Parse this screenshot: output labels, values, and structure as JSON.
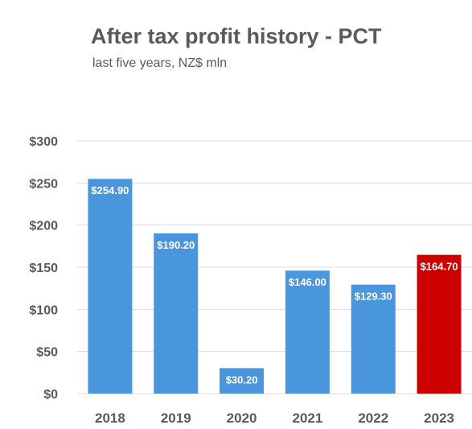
{
  "chart_data": {
    "type": "bar",
    "title": "After tax profit history - PCT",
    "subtitle": "last five years, NZ$ mln",
    "categories": [
      "2018",
      "2019",
      "2020",
      "2021",
      "2022",
      "2023"
    ],
    "values": [
      254.9,
      190.2,
      30.2,
      146.0,
      129.3,
      164.7
    ],
    "data_labels": [
      "$254.90",
      "$190.20",
      "$30.20",
      "$146.00",
      "$129.30",
      "$164.70"
    ],
    "ylim": [
      0,
      300
    ],
    "yticks": [
      0,
      50,
      100,
      150,
      200,
      250,
      300
    ],
    "ytick_labels": [
      "$0",
      "$50",
      "$100",
      "$150",
      "$200",
      "$250",
      "$300"
    ],
    "grid": true,
    "legend": "none",
    "colors": {
      "bar": "#4a96dc",
      "highlight_bar": "#cc0000",
      "gridline": "#d9d9d9",
      "axis_text": "#595959"
    },
    "highlight_category": "2023"
  }
}
